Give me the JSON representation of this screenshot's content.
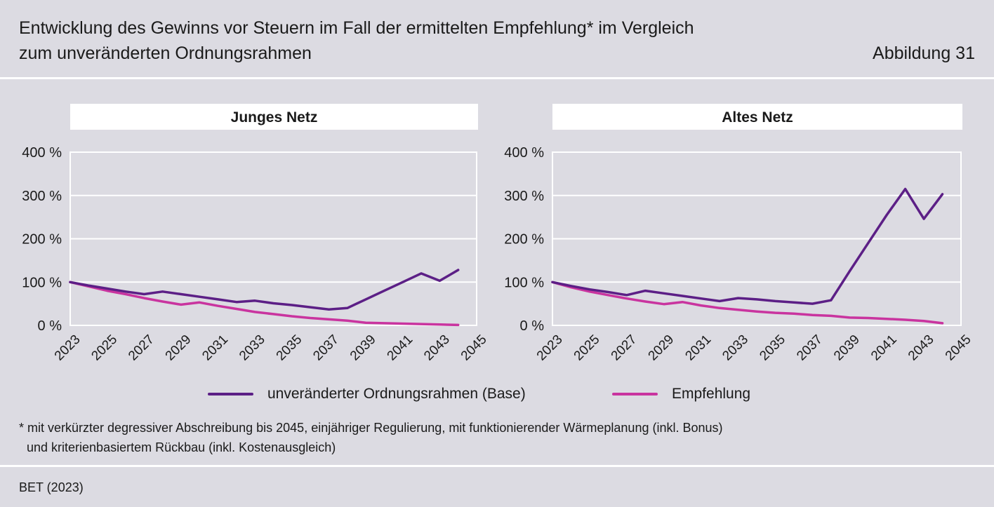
{
  "header": {
    "title_line1": "Entwicklung des Gewinns vor Steuern im Fall der ermittelten Empfehlung* im Vergleich",
    "title_line2": "zum unveränderten Ordnungsrahmen",
    "figure_label": "Abbildung 31"
  },
  "colors": {
    "base": "#5c1f86",
    "empfehlung": "#c9349f",
    "background": "#dcdbe2",
    "panel": "#ffffff"
  },
  "chart_data": [
    {
      "type": "line",
      "title": "Junges Netz",
      "x": [
        2023,
        2024,
        2025,
        2026,
        2027,
        2028,
        2029,
        2030,
        2031,
        2032,
        2033,
        2034,
        2035,
        2036,
        2037,
        2038,
        2039,
        2040,
        2041,
        2042,
        2043,
        2044
      ],
      "x_ticks": [
        "2023",
        "2025",
        "2027",
        "2029",
        "2031",
        "2033",
        "2035",
        "2037",
        "2039",
        "2041",
        "2043",
        "2045"
      ],
      "y_ticks": [
        "0 %",
        "100 %",
        "200 %",
        "300 %",
        "400 %"
      ],
      "ylim": [
        0,
        400
      ],
      "xlim": [
        2023,
        2045
      ],
      "series": [
        {
          "name": "unveränderter Ordnungsrahmen (Base)",
          "key": "base",
          "values": [
            100,
            92,
            85,
            78,
            72,
            78,
            72,
            66,
            60,
            54,
            57,
            51,
            47,
            42,
            37,
            40,
            60,
            80,
            100,
            120,
            103,
            128
          ]
        },
        {
          "name": "Empfehlung",
          "key": "empfehlung",
          "values": [
            100,
            90,
            80,
            72,
            63,
            55,
            48,
            53,
            45,
            38,
            31,
            26,
            21,
            17,
            14,
            11,
            6,
            5,
            4,
            3,
            2,
            1
          ]
        }
      ]
    },
    {
      "type": "line",
      "title": "Altes Netz",
      "x": [
        2023,
        2024,
        2025,
        2026,
        2027,
        2028,
        2029,
        2030,
        2031,
        2032,
        2033,
        2034,
        2035,
        2036,
        2037,
        2038,
        2039,
        2040,
        2041,
        2042,
        2043,
        2044
      ],
      "x_ticks": [
        "2023",
        "2025",
        "2027",
        "2029",
        "2031",
        "2033",
        "2035",
        "2037",
        "2039",
        "2041",
        "2043",
        "2045"
      ],
      "y_ticks": [
        "0 %",
        "100 %",
        "200 %",
        "300 %",
        "400 %"
      ],
      "ylim": [
        0,
        400
      ],
      "xlim": [
        2023,
        2045
      ],
      "series": [
        {
          "name": "unveränderter Ordnungsrahmen (Base)",
          "key": "base",
          "values": [
            100,
            91,
            83,
            77,
            70,
            80,
            74,
            68,
            62,
            56,
            63,
            60,
            56,
            53,
            50,
            58,
            125,
            190,
            255,
            315,
            246,
            303
          ]
        },
        {
          "name": "Empfehlung",
          "key": "empfehlung",
          "values": [
            100,
            88,
            78,
            70,
            62,
            55,
            49,
            54,
            46,
            40,
            36,
            32,
            29,
            27,
            24,
            22,
            18,
            17,
            15,
            13,
            10,
            5
          ]
        }
      ]
    }
  ],
  "legend": {
    "base_label": "unveränderter Ordnungsrahmen (Base)",
    "empfehlung_label": "Empfehlung"
  },
  "footnote": {
    "line1": "* mit verkürzter degressiver Abschreibung bis 2045, einjähriger Regulierung, mit funktionierender Wärmeplanung (inkl. Bonus)",
    "line2": "und kriterienbasiertem Rückbau (inkl. Kostenausgleich)"
  },
  "source": "BET (2023)"
}
